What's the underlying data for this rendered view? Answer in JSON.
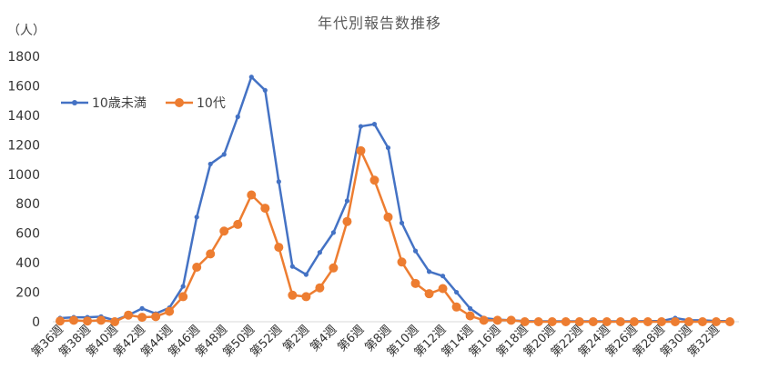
{
  "chart_data": {
    "type": "line",
    "title": "年代別報告数推移",
    "ylabel": "（人）",
    "xlabel": "",
    "ylim": [
      0,
      1800
    ],
    "y_ticks": [
      0,
      200,
      400,
      600,
      800,
      1000,
      1200,
      1400,
      1600,
      1800
    ],
    "x": [
      36,
      37,
      38,
      39,
      40,
      41,
      42,
      43,
      44,
      45,
      46,
      47,
      48,
      49,
      50,
      51,
      52,
      1,
      2,
      3,
      4,
      5,
      6,
      7,
      8,
      9,
      10,
      11,
      12,
      13,
      14,
      15,
      16,
      17,
      18,
      19,
      20,
      21,
      22,
      23,
      24,
      25,
      26,
      27,
      28,
      29,
      30,
      31,
      32,
      33
    ],
    "x_tick_labels": [
      "第36週",
      "第38週",
      "第40週",
      "第42週",
      "第44週",
      "第46週",
      "第48週",
      "第50週",
      "第52週",
      "第2週",
      "第4週",
      "第6週",
      "第8週",
      "第10週",
      "第12週",
      "第14週",
      "第16週",
      "第18週",
      "第20週",
      "第22週",
      "第24週",
      "第26週",
      "第28週",
      "第30週",
      "第32週"
    ],
    "grid": false,
    "legend": "top-left",
    "series": [
      {
        "name": "10歳未満",
        "color": "#4472C4",
        "values": [
          25,
          30,
          30,
          35,
          10,
          45,
          90,
          55,
          95,
          240,
          710,
          1070,
          1135,
          1390,
          1660,
          1570,
          950,
          375,
          320,
          470,
          605,
          820,
          1325,
          1340,
          1180,
          670,
          480,
          340,
          310,
          200,
          90,
          25,
          15,
          10,
          5,
          3,
          3,
          3,
          3,
          3,
          3,
          3,
          3,
          5,
          5,
          25,
          10,
          10,
          5,
          5
        ]
      },
      {
        "name": "10代",
        "color": "#ED7D31",
        "values": [
          5,
          10,
          5,
          10,
          0,
          45,
          30,
          35,
          70,
          170,
          370,
          460,
          615,
          660,
          860,
          770,
          505,
          180,
          170,
          230,
          365,
          680,
          1160,
          960,
          710,
          405,
          260,
          190,
          225,
          100,
          40,
          10,
          10,
          10,
          0,
          0,
          0,
          0,
          0,
          0,
          0,
          0,
          0,
          0,
          0,
          0,
          0,
          0,
          0,
          0
        ]
      }
    ]
  }
}
